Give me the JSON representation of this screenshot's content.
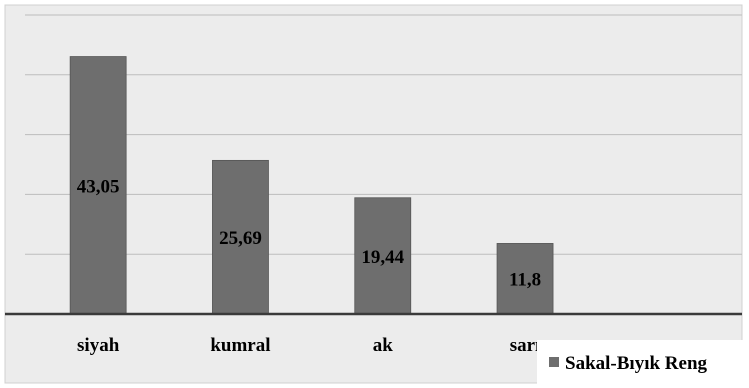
{
  "chart_data": {
    "type": "bar",
    "categories": [
      "siyah",
      "kumral",
      "ak",
      "sarı"
    ],
    "series": [
      {
        "name": "Sakal-Bıyık Reng",
        "values": [
          43.05,
          25.69,
          19.44,
          11.8
        ]
      }
    ],
    "data_labels": [
      "43,05",
      "25,69",
      "19,44",
      "11,8"
    ],
    "ylim": [
      0,
      50
    ],
    "grid": true,
    "legend_position": "bottom-right"
  },
  "colors": {
    "plot_background": "#ececec",
    "bar_fill": "#6e6e6e",
    "bar_stroke": "#555555",
    "gridline": "#bdbdbd",
    "axis_line": "#3a3a3a",
    "legend_marker": "#6e6e6e"
  }
}
